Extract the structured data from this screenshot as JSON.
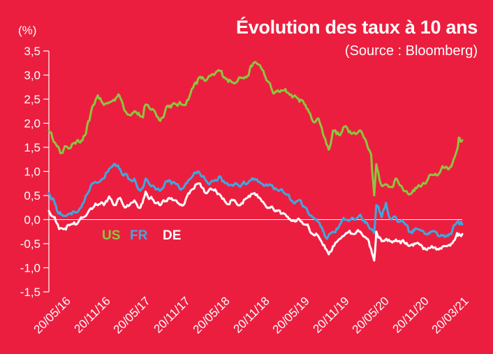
{
  "chart_data": {
    "type": "line",
    "title": "Évolution des taux à 10 ans",
    "subtitle": "(Source : Bloomberg)",
    "unit": "(%)",
    "ylim": [
      -1.5,
      3.5
    ],
    "y_ticks": [
      "3,5",
      "3,0",
      "2,5",
      "2,0",
      "1,5",
      "1,0",
      "0,5",
      "0,0",
      "-0,5",
      "-1,0",
      "-1,5"
    ],
    "x_ticks": [
      "20/05/16",
      "20/11/16",
      "20/05/17",
      "20/11/17",
      "20/05/18",
      "20/11/18",
      "20/05/19",
      "20/11/19",
      "20/05/20",
      "20/11/20",
      "20/03/21"
    ],
    "zero_line": true,
    "legend_position": "bottom-left, inside plot",
    "x_start": "2016-05-20",
    "x_end": "2021-03-20",
    "series": [
      {
        "name": "US",
        "color": "#8CC63F",
        "points": [
          [
            "2016-05-20",
            1.85
          ],
          [
            "2016-06-15",
            1.6
          ],
          [
            "2016-07-08",
            1.38
          ],
          [
            "2016-08-01",
            1.52
          ],
          [
            "2016-09-01",
            1.58
          ],
          [
            "2016-10-01",
            1.6
          ],
          [
            "2016-10-25",
            1.78
          ],
          [
            "2016-11-09",
            2.05
          ],
          [
            "2016-11-20",
            2.32
          ],
          [
            "2016-12-15",
            2.58
          ],
          [
            "2017-01-10",
            2.38
          ],
          [
            "2017-02-10",
            2.45
          ],
          [
            "2017-03-13",
            2.6
          ],
          [
            "2017-04-18",
            2.2
          ],
          [
            "2017-05-20",
            2.25
          ],
          [
            "2017-06-26",
            2.12
          ],
          [
            "2017-07-07",
            2.39
          ],
          [
            "2017-08-15",
            2.25
          ],
          [
            "2017-09-08",
            2.05
          ],
          [
            "2017-10-05",
            2.35
          ],
          [
            "2017-11-10",
            2.4
          ],
          [
            "2017-12-15",
            2.38
          ],
          [
            "2018-01-10",
            2.55
          ],
          [
            "2018-02-05",
            2.85
          ],
          [
            "2018-02-21",
            2.95
          ],
          [
            "2018-03-20",
            2.88
          ],
          [
            "2018-04-25",
            3.0
          ],
          [
            "2018-05-17",
            3.1
          ],
          [
            "2018-06-10",
            2.95
          ],
          [
            "2018-07-10",
            2.85
          ],
          [
            "2018-08-10",
            2.95
          ],
          [
            "2018-09-10",
            2.95
          ],
          [
            "2018-10-09",
            3.24
          ],
          [
            "2018-11-08",
            3.2
          ],
          [
            "2018-12-01",
            2.95
          ],
          [
            "2019-01-03",
            2.62
          ],
          [
            "2019-02-10",
            2.68
          ],
          [
            "2019-03-10",
            2.62
          ],
          [
            "2019-04-10",
            2.55
          ],
          [
            "2019-05-20",
            2.38
          ],
          [
            "2019-06-20",
            2.05
          ],
          [
            "2019-07-15",
            2.1
          ],
          [
            "2019-08-28",
            1.45
          ],
          [
            "2019-09-15",
            1.85
          ],
          [
            "2019-10-15",
            1.75
          ],
          [
            "2019-11-08",
            1.94
          ],
          [
            "2019-12-10",
            1.8
          ],
          [
            "2020-01-10",
            1.85
          ],
          [
            "2020-02-05",
            1.6
          ],
          [
            "2020-02-25",
            1.35
          ],
          [
            "2020-03-09",
            0.5
          ],
          [
            "2020-03-18",
            1.15
          ],
          [
            "2020-04-10",
            0.7
          ],
          [
            "2020-05-20",
            0.68
          ],
          [
            "2020-06-08",
            0.85
          ],
          [
            "2020-07-10",
            0.62
          ],
          [
            "2020-08-04",
            0.52
          ],
          [
            "2020-09-10",
            0.68
          ],
          [
            "2020-10-15",
            0.75
          ],
          [
            "2020-11-09",
            0.93
          ],
          [
            "2020-12-10",
            0.95
          ],
          [
            "2021-01-10",
            1.1
          ],
          [
            "2021-02-01",
            1.1
          ],
          [
            "2021-02-26",
            1.45
          ],
          [
            "2021-03-05",
            1.7
          ],
          [
            "2021-03-12",
            1.62
          ],
          [
            "2021-03-20",
            1.65
          ]
        ]
      },
      {
        "name": "FR",
        "color": "#3DA9E0",
        "points": [
          [
            "2016-05-20",
            0.55
          ],
          [
            "2016-06-10",
            0.42
          ],
          [
            "2016-06-27",
            0.15
          ],
          [
            "2016-07-15",
            0.1
          ],
          [
            "2016-08-15",
            0.12
          ],
          [
            "2016-09-15",
            0.15
          ],
          [
            "2016-10-15",
            0.35
          ],
          [
            "2016-11-09",
            0.6
          ],
          [
            "2016-11-25",
            0.75
          ],
          [
            "2016-12-20",
            0.78
          ],
          [
            "2017-01-10",
            0.85
          ],
          [
            "2017-02-01",
            1.05
          ],
          [
            "2017-02-21",
            1.15
          ],
          [
            "2017-03-20",
            1.05
          ],
          [
            "2017-04-10",
            0.95
          ],
          [
            "2017-04-24",
            0.85
          ],
          [
            "2017-05-20",
            0.85
          ],
          [
            "2017-06-15",
            0.6
          ],
          [
            "2017-07-07",
            0.85
          ],
          [
            "2017-08-10",
            0.7
          ],
          [
            "2017-09-08",
            0.6
          ],
          [
            "2017-10-15",
            0.82
          ],
          [
            "2017-11-10",
            0.75
          ],
          [
            "2017-12-15",
            0.65
          ],
          [
            "2018-01-15",
            0.85
          ],
          [
            "2018-02-15",
            1.0
          ],
          [
            "2018-03-20",
            0.82
          ],
          [
            "2018-04-20",
            0.8
          ],
          [
            "2018-05-20",
            0.9
          ],
          [
            "2018-06-15",
            0.75
          ],
          [
            "2018-07-15",
            0.7
          ],
          [
            "2018-08-15",
            0.68
          ],
          [
            "2018-09-15",
            0.75
          ],
          [
            "2018-10-15",
            0.85
          ],
          [
            "2018-11-15",
            0.75
          ],
          [
            "2018-12-15",
            0.72
          ],
          [
            "2019-01-20",
            0.62
          ],
          [
            "2019-02-20",
            0.55
          ],
          [
            "2019-03-20",
            0.4
          ],
          [
            "2019-04-20",
            0.4
          ],
          [
            "2019-05-20",
            0.25
          ],
          [
            "2019-06-20",
            0.05
          ],
          [
            "2019-07-15",
            -0.05
          ],
          [
            "2019-08-20",
            -0.4
          ],
          [
            "2019-09-15",
            -0.25
          ],
          [
            "2019-10-15",
            -0.1
          ],
          [
            "2019-11-10",
            0.0
          ],
          [
            "2019-12-15",
            0.0
          ],
          [
            "2020-01-10",
            0.1
          ],
          [
            "2020-02-10",
            -0.1
          ],
          [
            "2020-03-09",
            -0.28
          ],
          [
            "2020-03-18",
            0.3
          ],
          [
            "2020-04-10",
            0.05
          ],
          [
            "2020-04-28",
            0.35
          ],
          [
            "2020-05-20",
            0.0
          ],
          [
            "2020-06-20",
            -0.05
          ],
          [
            "2020-07-20",
            -0.1
          ],
          [
            "2020-08-04",
            -0.25
          ],
          [
            "2020-09-10",
            -0.2
          ],
          [
            "2020-10-15",
            -0.3
          ],
          [
            "2020-11-10",
            -0.25
          ],
          [
            "2020-12-10",
            -0.35
          ],
          [
            "2021-01-10",
            -0.35
          ],
          [
            "2021-02-01",
            -0.3
          ],
          [
            "2021-02-26",
            -0.05
          ],
          [
            "2021-03-10",
            -0.1
          ],
          [
            "2021-03-20",
            -0.1
          ]
        ]
      },
      {
        "name": "DE",
        "color": "#FFFFFF",
        "points": [
          [
            "2016-05-20",
            0.18
          ],
          [
            "2016-06-10",
            0.05
          ],
          [
            "2016-06-27",
            -0.1
          ],
          [
            "2016-07-08",
            -0.18
          ],
          [
            "2016-08-15",
            -0.12
          ],
          [
            "2016-09-15",
            -0.1
          ],
          [
            "2016-10-15",
            0.05
          ],
          [
            "2016-11-09",
            0.2
          ],
          [
            "2016-11-25",
            0.25
          ],
          [
            "2016-12-20",
            0.32
          ],
          [
            "2017-01-10",
            0.3
          ],
          [
            "2017-02-01",
            0.48
          ],
          [
            "2017-02-21",
            0.3
          ],
          [
            "2017-03-20",
            0.45
          ],
          [
            "2017-04-10",
            0.25
          ],
          [
            "2017-05-20",
            0.4
          ],
          [
            "2017-06-15",
            0.25
          ],
          [
            "2017-07-07",
            0.58
          ],
          [
            "2017-08-10",
            0.4
          ],
          [
            "2017-09-08",
            0.3
          ],
          [
            "2017-10-15",
            0.45
          ],
          [
            "2017-11-10",
            0.4
          ],
          [
            "2017-12-15",
            0.3
          ],
          [
            "2018-01-15",
            0.6
          ],
          [
            "2018-02-15",
            0.75
          ],
          [
            "2018-03-20",
            0.55
          ],
          [
            "2018-04-20",
            0.62
          ],
          [
            "2018-05-20",
            0.52
          ],
          [
            "2018-06-15",
            0.35
          ],
          [
            "2018-07-15",
            0.4
          ],
          [
            "2018-08-15",
            0.3
          ],
          [
            "2018-09-15",
            0.45
          ],
          [
            "2018-10-15",
            0.55
          ],
          [
            "2018-11-15",
            0.38
          ],
          [
            "2018-12-15",
            0.25
          ],
          [
            "2019-01-20",
            0.18
          ],
          [
            "2019-02-20",
            0.12
          ],
          [
            "2019-03-20",
            -0.02
          ],
          [
            "2019-04-20",
            0.02
          ],
          [
            "2019-05-20",
            -0.1
          ],
          [
            "2019-06-20",
            -0.3
          ],
          [
            "2019-07-15",
            -0.35
          ],
          [
            "2019-08-28",
            -0.72
          ],
          [
            "2019-09-15",
            -0.55
          ],
          [
            "2019-10-15",
            -0.4
          ],
          [
            "2019-11-10",
            -0.28
          ],
          [
            "2019-12-15",
            -0.3
          ],
          [
            "2020-01-10",
            -0.25
          ],
          [
            "2020-02-10",
            -0.4
          ],
          [
            "2020-03-09",
            -0.85
          ],
          [
            "2020-03-18",
            -0.25
          ],
          [
            "2020-04-10",
            -0.45
          ],
          [
            "2020-05-20",
            -0.45
          ],
          [
            "2020-06-20",
            -0.45
          ],
          [
            "2020-07-20",
            -0.5
          ],
          [
            "2020-08-04",
            -0.55
          ],
          [
            "2020-09-10",
            -0.48
          ],
          [
            "2020-10-15",
            -0.62
          ],
          [
            "2020-11-10",
            -0.55
          ],
          [
            "2020-12-10",
            -0.62
          ],
          [
            "2021-01-10",
            -0.55
          ],
          [
            "2021-02-01",
            -0.5
          ],
          [
            "2021-02-26",
            -0.28
          ],
          [
            "2021-03-10",
            -0.32
          ],
          [
            "2021-03-20",
            -0.3
          ]
        ]
      }
    ]
  }
}
